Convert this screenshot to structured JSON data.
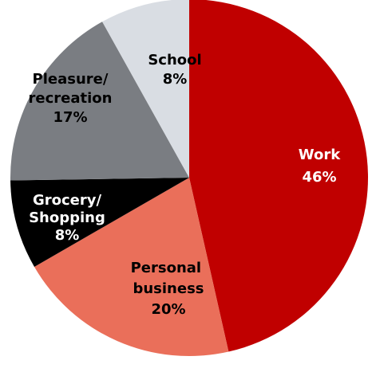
{
  "chart_data": {
    "type": "pie",
    "categories": [
      "Work",
      "Personal business",
      "Grocery/Shopping",
      "Pleasure/recreation",
      "School"
    ],
    "values": [
      46,
      20,
      8,
      17,
      8
    ],
    "value_labels": [
      "46%",
      "20%",
      "8%",
      "17%",
      "8%"
    ],
    "colors": [
      "#c00000",
      "#ea6f5a",
      "#000000",
      "#7a7d82",
      "#d9dde3"
    ],
    "label_colors": [
      "#ffffff",
      "#000000",
      "#ffffff",
      "#000000",
      "#000000"
    ]
  }
}
